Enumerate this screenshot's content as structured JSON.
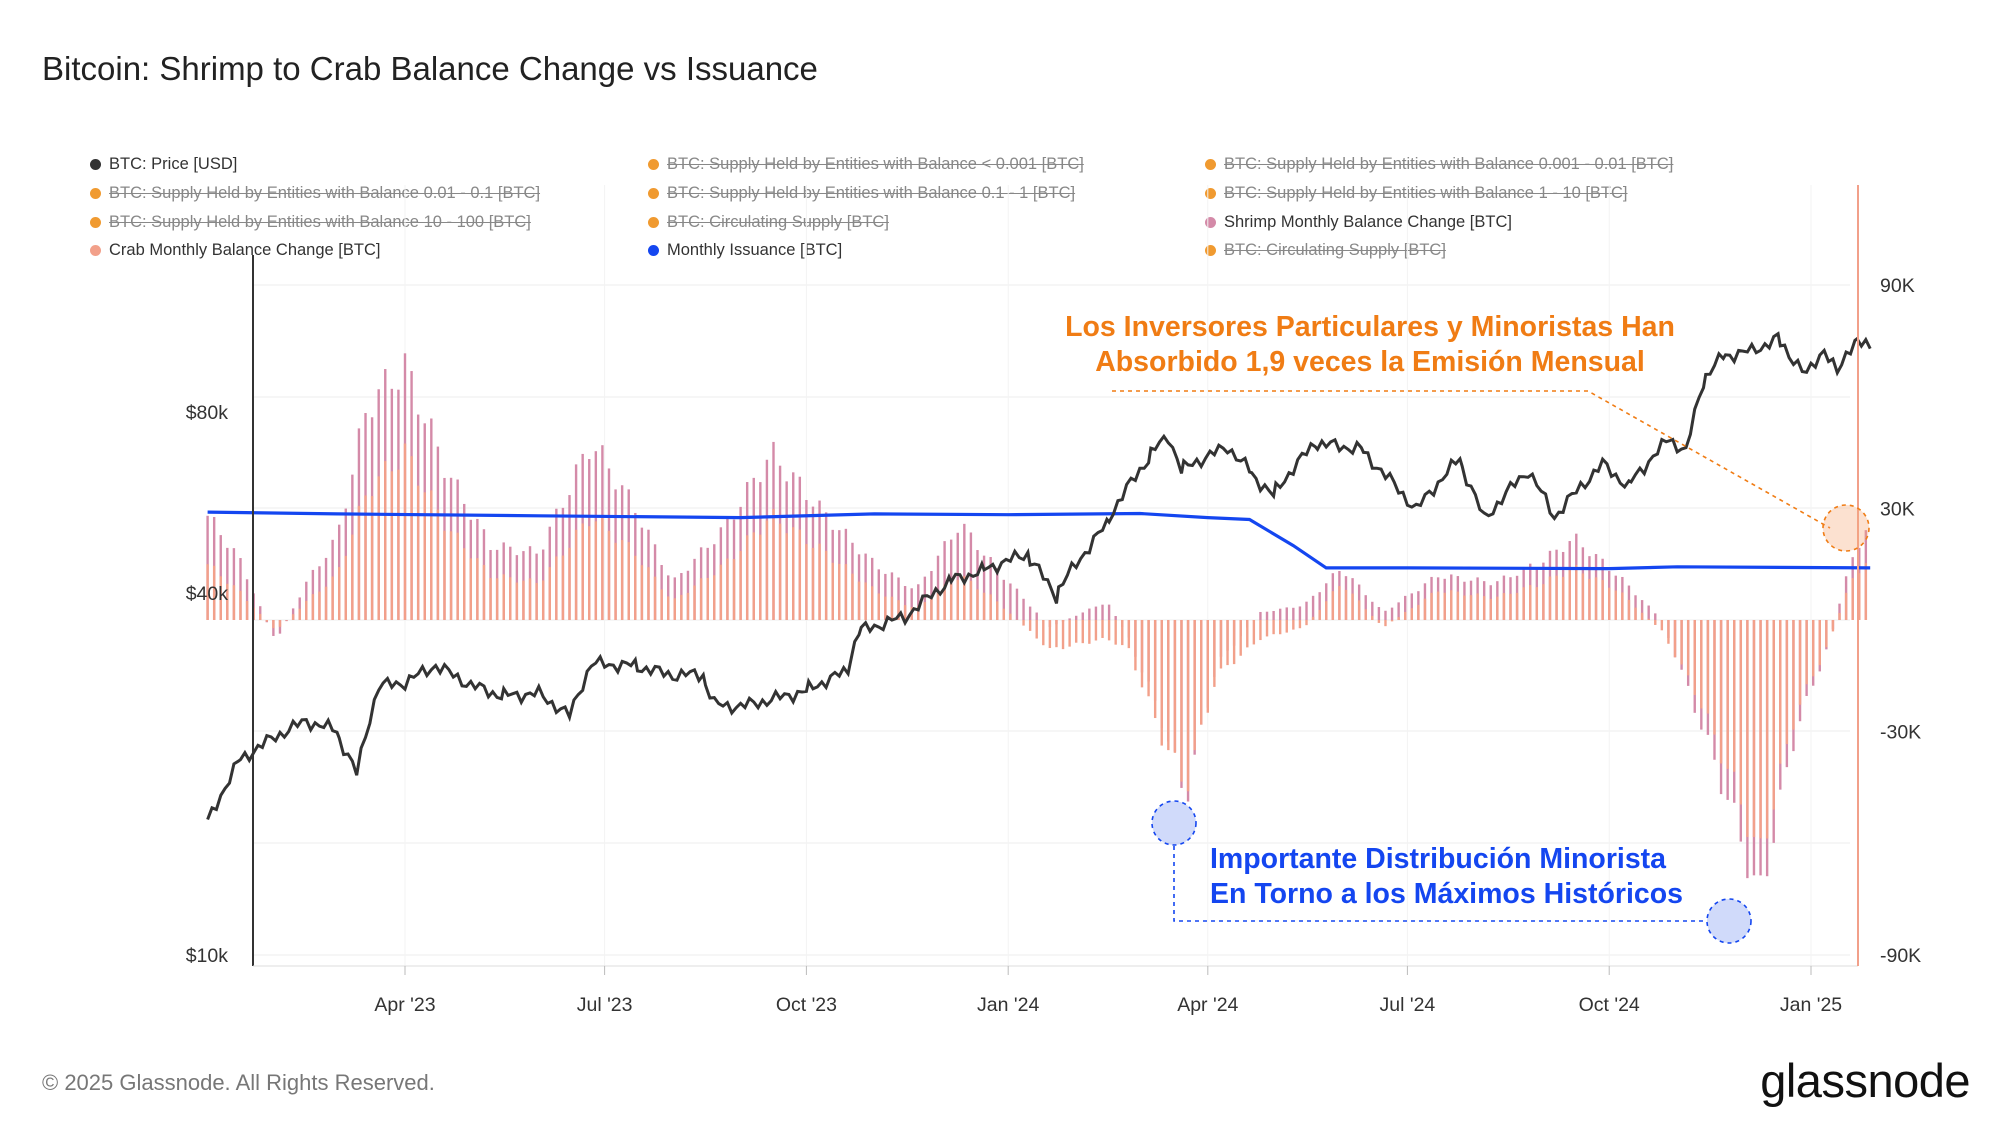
{
  "title": "Bitcoin: Shrimp to Crab Balance Change vs Issuance",
  "legend": [
    {
      "label": "BTC: Price [USD]",
      "color": "#333333",
      "active": true
    },
    {
      "label": "BTC: Supply Held by Entities with Balance < 0.001 [BTC]",
      "color": "#f09a30",
      "active": false
    },
    {
      "label": "BTC: Supply Held by Entities with Balance 0.001 - 0.01 [BTC]",
      "color": "#f09a30",
      "active": false
    },
    {
      "label": "BTC: Supply Held by Entities with Balance 0.01 - 0.1 [BTC]",
      "color": "#f09a30",
      "active": false
    },
    {
      "label": "BTC: Supply Held by Entities with Balance 0.1 - 1 [BTC]",
      "color": "#f09a30",
      "active": false
    },
    {
      "label": "BTC: Supply Held by Entities with Balance 1 - 10 [BTC]",
      "color": "#f09a30",
      "active": false
    },
    {
      "label": "BTC: Supply Held by Entities with Balance 10 - 100 [BTC]",
      "color": "#f09a30",
      "active": false
    },
    {
      "label": "BTC: Circulating Supply [BTC]",
      "color": "#f09a30",
      "active": false
    },
    {
      "label": "Shrimp Monthly Balance Change [BTC]",
      "color": "#d48aa8",
      "active": true
    },
    {
      "label": "Crab Monthly Balance Change [BTC]",
      "color": "#f2a08a",
      "active": true
    },
    {
      "label": "Monthly Issuance [BTC]",
      "color": "#1446f0",
      "active": true
    },
    {
      "label": "BTC: Circulating Supply [BTC]",
      "color": "#f09a30",
      "active": false
    }
  ],
  "annotations": {
    "orange_line1": "Los Inversores Particulares y Minoristas Han",
    "orange_line2": "Absorbido 1,9 veces la Emisión Mensual",
    "blue_line1": "Importante Distribución Minorista",
    "blue_line2": "En Torno a los Máximos Históricos"
  },
  "footer": "© 2025 Glassnode. All Rights Reserved.",
  "logo": "glassnode",
  "colors": {
    "price": "#333333",
    "shrimp": "#d48aa8",
    "crab": "#f2a08a",
    "issuance": "#1446f0",
    "annotation_orange": "#f07c14",
    "annotation_blue": "#1446f0",
    "grid": "#eeeeee"
  },
  "chart_data": {
    "type": "line",
    "x_range": [
      "2023-01-01",
      "2025-02-01"
    ],
    "x_ticks": [
      {
        "date": "2023-04-01",
        "label": "Apr '23"
      },
      {
        "date": "2023-07-01",
        "label": "Jul '23"
      },
      {
        "date": "2023-10-01",
        "label": "Oct '23"
      },
      {
        "date": "2024-01-01",
        "label": "Jan '24"
      },
      {
        "date": "2024-04-01",
        "label": "Apr '24"
      },
      {
        "date": "2024-07-01",
        "label": "Jul '24"
      },
      {
        "date": "2024-10-01",
        "label": "Oct '24"
      },
      {
        "date": "2025-01-01",
        "label": "Jan '25"
      }
    ],
    "y_left": {
      "scale": "log",
      "range": [
        10000,
        130000
      ],
      "ticks": [
        {
          "value": 10000,
          "label": "$10k"
        },
        {
          "value": 40000,
          "label": "$40k"
        },
        {
          "value": 80000,
          "label": "$80k"
        }
      ]
    },
    "y_right": {
      "scale": "linear",
      "range": [
        -90000,
        110000
      ],
      "ticks": [
        {
          "value": 90000,
          "label": "90K"
        },
        {
          "value": 30000,
          "label": "30K"
        },
        {
          "value": -30000,
          "label": "-30K"
        },
        {
          "value": -90000,
          "label": "-90K"
        }
      ]
    },
    "series": [
      {
        "name": "BTC: Price [USD]",
        "axis": "left",
        "kind": "line",
        "points": [
          [
            "2023-01-01",
            16600
          ],
          [
            "2023-01-15",
            20900
          ],
          [
            "2023-02-01",
            23100
          ],
          [
            "2023-02-15",
            24500
          ],
          [
            "2023-03-01",
            23600
          ],
          [
            "2023-03-10",
            20000
          ],
          [
            "2023-03-20",
            28000
          ],
          [
            "2023-04-01",
            28400
          ],
          [
            "2023-04-15",
            30300
          ],
          [
            "2023-05-01",
            28100
          ],
          [
            "2023-05-15",
            27000
          ],
          [
            "2023-06-01",
            27200
          ],
          [
            "2023-06-15",
            25000
          ],
          [
            "2023-06-25",
            30500
          ],
          [
            "2023-07-15",
            30300
          ],
          [
            "2023-08-01",
            29200
          ],
          [
            "2023-08-15",
            29300
          ],
          [
            "2023-08-20",
            26100
          ],
          [
            "2023-09-01",
            25900
          ],
          [
            "2023-09-15",
            26600
          ],
          [
            "2023-10-01",
            27500
          ],
          [
            "2023-10-20",
            29700
          ],
          [
            "2023-10-25",
            34500
          ],
          [
            "2023-11-15",
            36500
          ],
          [
            "2023-12-05",
            41800
          ],
          [
            "2023-12-20",
            43500
          ],
          [
            "2024-01-10",
            46500
          ],
          [
            "2024-01-23",
            39500
          ],
          [
            "2024-02-15",
            52000
          ],
          [
            "2024-03-05",
            67000
          ],
          [
            "2024-03-14",
            73000
          ],
          [
            "2024-03-20",
            64000
          ],
          [
            "2024-04-10",
            70000
          ],
          [
            "2024-04-20",
            64000
          ],
          [
            "2024-05-01",
            58000
          ],
          [
            "2024-05-20",
            71000
          ],
          [
            "2024-06-10",
            69500
          ],
          [
            "2024-07-05",
            55000
          ],
          [
            "2024-07-25",
            67000
          ],
          [
            "2024-08-05",
            53000
          ],
          [
            "2024-08-25",
            64000
          ],
          [
            "2024-09-06",
            53500
          ],
          [
            "2024-09-28",
            65500
          ],
          [
            "2024-10-10",
            60000
          ],
          [
            "2024-10-29",
            72500
          ],
          [
            "2024-11-05",
            68500
          ],
          [
            "2024-11-13",
            90000
          ],
          [
            "2024-11-22",
            99000
          ],
          [
            "2024-12-05",
            101000
          ],
          [
            "2024-12-17",
            106000
          ],
          [
            "2024-12-30",
            92000
          ],
          [
            "2025-01-07",
            102000
          ],
          [
            "2025-01-13",
            92500
          ],
          [
            "2025-01-21",
            106000
          ],
          [
            "2025-01-28",
            102000
          ]
        ]
      },
      {
        "name": "Shrimp Monthly Balance Change [BTC]",
        "axis": "right",
        "kind": "bar",
        "points": [
          [
            "2023-01-01",
            28000
          ],
          [
            "2023-01-15",
            17000
          ],
          [
            "2023-02-01",
            -6000
          ],
          [
            "2023-02-15",
            10000
          ],
          [
            "2023-03-01",
            22000
          ],
          [
            "2023-03-15",
            58000
          ],
          [
            "2023-04-01",
            68000
          ],
          [
            "2023-04-20",
            40000
          ],
          [
            "2023-05-10",
            20000
          ],
          [
            "2023-06-01",
            18000
          ],
          [
            "2023-06-25",
            48000
          ],
          [
            "2023-07-15",
            30000
          ],
          [
            "2023-08-01",
            10000
          ],
          [
            "2023-08-25",
            25000
          ],
          [
            "2023-09-15",
            45000
          ],
          [
            "2023-10-10",
            28000
          ],
          [
            "2023-11-01",
            15000
          ],
          [
            "2023-11-20",
            8000
          ],
          [
            "2023-12-10",
            26000
          ],
          [
            "2023-12-25",
            15000
          ],
          [
            "2024-01-20",
            -2000
          ],
          [
            "2024-02-15",
            5000
          ],
          [
            "2024-02-25",
            -5000
          ],
          [
            "2024-03-10",
            -25000
          ],
          [
            "2024-03-22",
            -48000
          ],
          [
            "2024-04-05",
            -12000
          ],
          [
            "2024-04-25",
            2000
          ],
          [
            "2024-05-15",
            4000
          ],
          [
            "2024-06-01",
            14000
          ],
          [
            "2024-06-20",
            2000
          ],
          [
            "2024-07-15",
            12000
          ],
          [
            "2024-08-10",
            10000
          ],
          [
            "2024-09-01",
            16000
          ],
          [
            "2024-09-15",
            22000
          ],
          [
            "2024-10-05",
            12000
          ],
          [
            "2024-10-25",
            0
          ],
          [
            "2024-11-10",
            -25000
          ],
          [
            "2024-12-01",
            -60000
          ],
          [
            "2024-12-08",
            -76000
          ],
          [
            "2024-12-25",
            -30000
          ],
          [
            "2025-01-10",
            -5000
          ],
          [
            "2025-01-20",
            18000
          ],
          [
            "2025-01-28",
            24000
          ]
        ]
      },
      {
        "name": "Crab Monthly Balance Change [BTC]",
        "axis": "right",
        "kind": "bar",
        "points": [
          [
            "2023-01-01",
            15000
          ],
          [
            "2023-01-15",
            8000
          ],
          [
            "2023-02-01",
            -3000
          ],
          [
            "2023-02-15",
            5000
          ],
          [
            "2023-03-01",
            12000
          ],
          [
            "2023-03-15",
            35000
          ],
          [
            "2023-04-01",
            45000
          ],
          [
            "2023-04-20",
            25000
          ],
          [
            "2023-05-10",
            12000
          ],
          [
            "2023-06-01",
            10000
          ],
          [
            "2023-06-25",
            28000
          ],
          [
            "2023-07-15",
            18000
          ],
          [
            "2023-08-01",
            5000
          ],
          [
            "2023-08-25",
            15000
          ],
          [
            "2023-09-15",
            28000
          ],
          [
            "2023-10-10",
            18000
          ],
          [
            "2023-11-01",
            8000
          ],
          [
            "2023-11-20",
            3000
          ],
          [
            "2023-12-10",
            12000
          ],
          [
            "2023-12-25",
            6000
          ],
          [
            "2024-01-20",
            -8000
          ],
          [
            "2024-02-15",
            -5000
          ],
          [
            "2024-02-25",
            -8000
          ],
          [
            "2024-03-10",
            -30000
          ],
          [
            "2024-03-22",
            -45000
          ],
          [
            "2024-04-05",
            -15000
          ],
          [
            "2024-04-25",
            -5000
          ],
          [
            "2024-05-15",
            -2000
          ],
          [
            "2024-06-01",
            10000
          ],
          [
            "2024-06-20",
            -2000
          ],
          [
            "2024-07-15",
            8000
          ],
          [
            "2024-08-10",
            6000
          ],
          [
            "2024-09-01",
            10000
          ],
          [
            "2024-09-15",
            14000
          ],
          [
            "2024-10-05",
            8000
          ],
          [
            "2024-10-25",
            -3000
          ],
          [
            "2024-11-10",
            -20000
          ],
          [
            "2024-12-01",
            -50000
          ],
          [
            "2024-12-08",
            -65000
          ],
          [
            "2024-12-25",
            -25000
          ],
          [
            "2025-01-10",
            -5000
          ],
          [
            "2025-01-20",
            12000
          ],
          [
            "2025-01-28",
            15000
          ]
        ]
      },
      {
        "name": "Monthly Issuance [BTC]",
        "axis": "right",
        "kind": "line",
        "points": [
          [
            "2023-01-01",
            29000
          ],
          [
            "2023-03-01",
            28500
          ],
          [
            "2023-06-01",
            28000
          ],
          [
            "2023-09-01",
            27500
          ],
          [
            "2023-11-01",
            28500
          ],
          [
            "2024-01-01",
            28300
          ],
          [
            "2024-03-01",
            28600
          ],
          [
            "2024-04-01",
            27500
          ],
          [
            "2024-04-20",
            27000
          ],
          [
            "2024-05-10",
            20000
          ],
          [
            "2024-05-25",
            14000
          ],
          [
            "2024-07-01",
            14000
          ],
          [
            "2024-10-01",
            13800
          ],
          [
            "2024-11-01",
            14300
          ],
          [
            "2025-01-28",
            14000
          ]
        ]
      }
    ]
  }
}
